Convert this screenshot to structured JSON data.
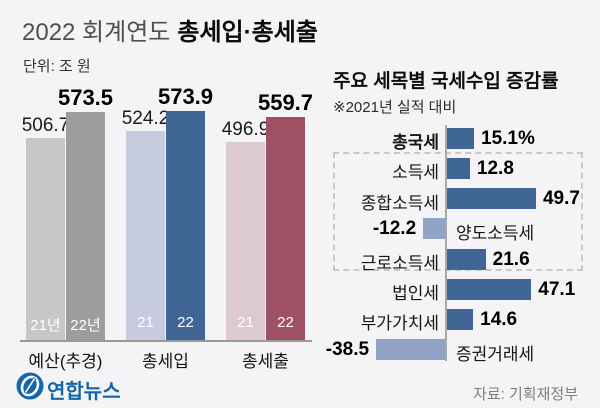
{
  "header": {
    "title_light": "2022 회계연도",
    "title_bold": "총세입·총세출",
    "unit_label": "단위: 조 원"
  },
  "right_header": {
    "title": "주요 세목별 국세수입 증감률",
    "note": "※2021년 실적 대비"
  },
  "footer": {
    "logo_text": "연합뉴스",
    "source": "자료: 기획재정부"
  },
  "colors": {
    "background": "#f4f3f5",
    "positive_bar": "#3f6695",
    "negative_bar": "#92a4c6",
    "brand_blue": "#1565ab",
    "axis_gray": "#9a9a9a"
  },
  "chart_data": [
    {
      "type": "bar",
      "title": "2022 회계연도 총세입·총세출",
      "unit": "조 원",
      "categories": [
        "예산(추경)",
        "총세입",
        "총세출"
      ],
      "series": [
        {
          "name": "21",
          "values": [
            506.7,
            524.2,
            496.9
          ],
          "bar_labels": [
            "21년",
            "21",
            "21"
          ],
          "colors": [
            "#c7c7c7",
            "#c7cbdf",
            "#ddc9d0"
          ],
          "value_bold": false
        },
        {
          "name": "22",
          "values": [
            573.5,
            573.9,
            559.7
          ],
          "bar_labels": [
            "22년",
            "22",
            "22"
          ],
          "colors": [
            "#9d9d9d",
            "#3f6695",
            "#9e5065"
          ],
          "value_bold": true
        }
      ],
      "ylim": [
        0,
        590
      ],
      "grid": false,
      "legend_position": "none"
    },
    {
      "type": "bar",
      "orientation": "horizontal",
      "title": "주요 세목별 국세수입 증감률",
      "note": "※2021년 실적 대비",
      "unit": "%",
      "categories": [
        "총국세",
        "소득세",
        "종합소득세",
        "양도소득세",
        "근로소득세",
        "법인세",
        "부가가치세",
        "증권거래세"
      ],
      "values": [
        15.1,
        12.8,
        49.7,
        -12.2,
        21.6,
        47.1,
        14.6,
        -38.5
      ],
      "value_labels": [
        "15.1%",
        "12.8",
        "49.7",
        "-12.2",
        "21.6",
        "47.1",
        "14.6",
        "-38.5"
      ],
      "bold_category": "총국세",
      "grouped_box_categories": [
        "소득세",
        "종합소득세",
        "양도소득세",
        "근로소득세"
      ],
      "positive_color": "#3f6695",
      "negative_color": "#92a4c6",
      "xlim": [
        -40,
        52
      ],
      "grid": false
    }
  ]
}
